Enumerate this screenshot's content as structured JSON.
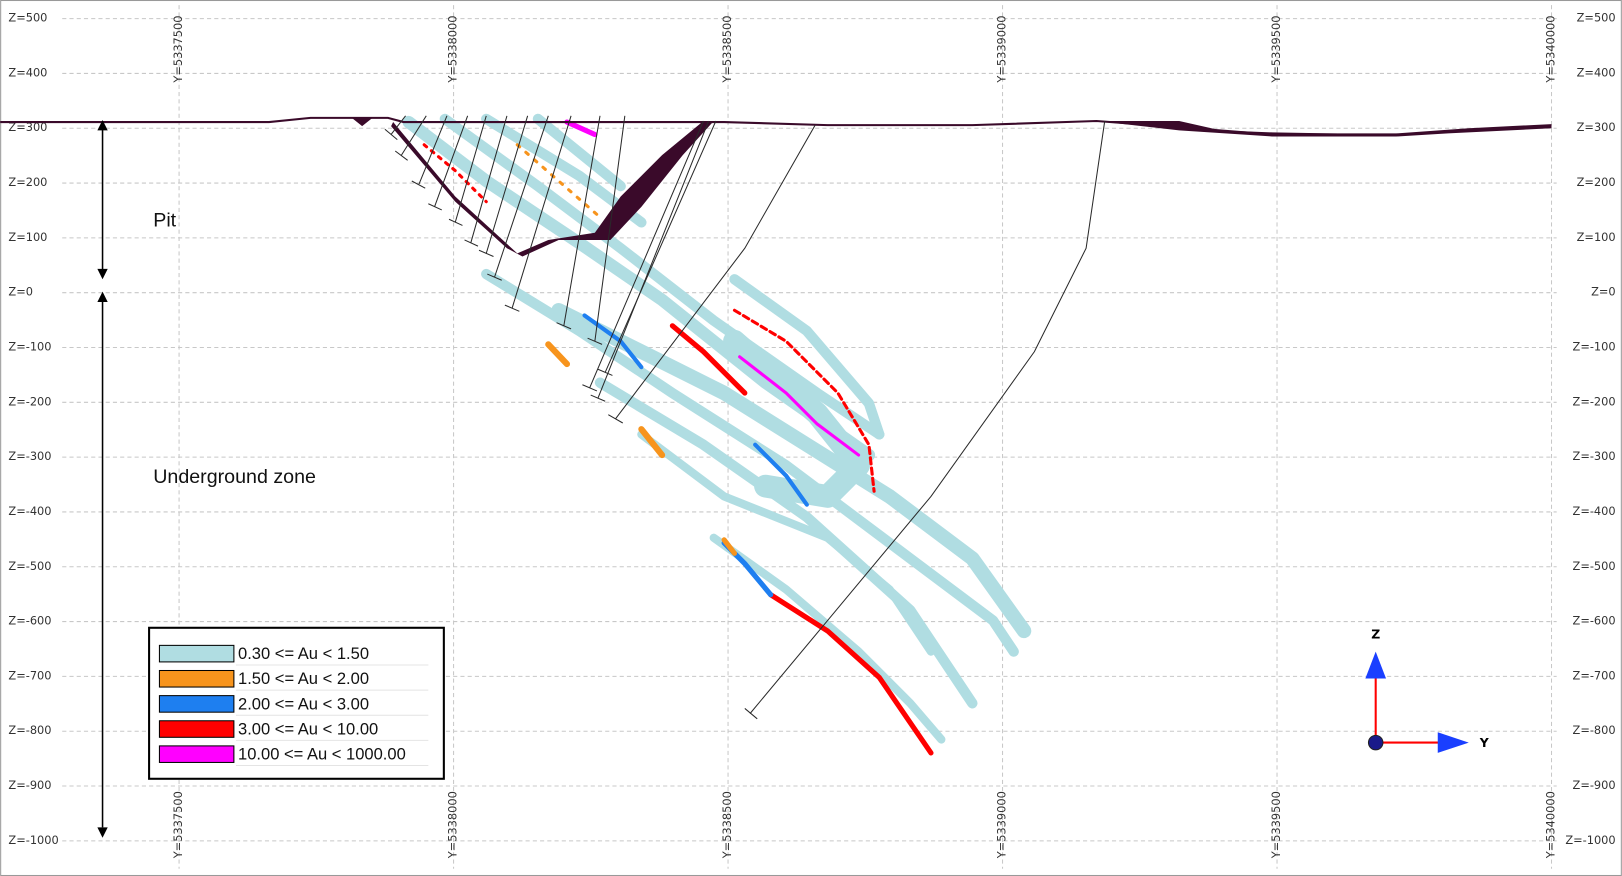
{
  "section": {
    "z_labels": [
      "Z=500",
      "Z=400",
      "Z=300",
      "Z=200",
      "Z=100",
      "Z=0",
      "Z=-100",
      "Z=-200",
      "Z=-300",
      "Z=-400",
      "Z=-500",
      "Z=-600",
      "Z=-700",
      "Z=-800",
      "Z=-900",
      "Z=-1000"
    ],
    "y_labels": [
      "Y=5337500",
      "Y=5338000",
      "Y=5338500",
      "Y=5339000",
      "Y=5339500",
      "Y=5340000"
    ],
    "annotations": {
      "pit": "Pit",
      "underground": "Underground zone"
    },
    "legend": [
      {
        "label": "0.30 <= Au < 1.50",
        "color": "#b0dde2"
      },
      {
        "label": "1.50 <= Au < 2.00",
        "color": "#f7941d"
      },
      {
        "label": "2.00 <= Au < 3.00",
        "color": "#1e7ff0"
      },
      {
        "label": "3.00 <= Au < 10.00",
        "color": "#ff0000"
      },
      {
        "label": "10.00 <= Au < 1000.00",
        "color": "#ff00ff"
      }
    ],
    "triad": {
      "z": "Z",
      "y": "Y"
    }
  }
}
